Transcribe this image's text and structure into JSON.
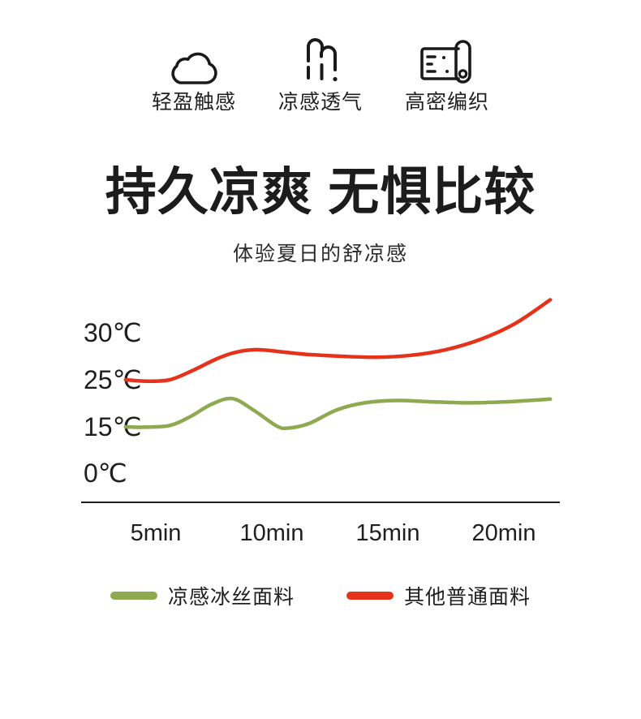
{
  "page": {
    "background": "#ffffff"
  },
  "colors": {
    "text": "#1f1f1f",
    "icon_stroke": "#1a1a1a",
    "axis": "#1f1f1f",
    "cool_green": "#8FA951",
    "warm_red": "#E5331B"
  },
  "features": {
    "items": [
      {
        "icon": "cloud-icon",
        "label": "轻盈触感"
      },
      {
        "icon": "steam-icon",
        "label": "凉感透气"
      },
      {
        "icon": "fabric-roll-icon",
        "label": "高密编织"
      }
    ]
  },
  "heading": {
    "title": "持久凉爽 无惧比较",
    "subtitle": "体验夏日的舒凉感"
  },
  "chart_data": {
    "type": "line",
    "title": "",
    "x_unit": "min",
    "y_unit": "℃",
    "grid": false,
    "legend_position": "bottom",
    "y_axis_style": "non-linear: tick stops 0/15/25/30 are evenly spaced",
    "x_ticks": [
      {
        "value": 5,
        "label": "5min"
      },
      {
        "value": 10,
        "label": "10min"
      },
      {
        "value": 15,
        "label": "15min"
      },
      {
        "value": 20,
        "label": "20min"
      }
    ],
    "y_ticks": [
      {
        "value": 30,
        "label": "30℃"
      },
      {
        "value": 25,
        "label": "25℃"
      },
      {
        "value": 15,
        "label": "15℃"
      },
      {
        "value": 0,
        "label": "0℃"
      }
    ],
    "series": [
      {
        "name": "凉感冰丝面料",
        "color": "#8FA951",
        "points": [
          [
            3.7,
            15.0
          ],
          [
            4.5,
            14.9
          ],
          [
            5.6,
            15.3
          ],
          [
            6.5,
            17.2
          ],
          [
            7.4,
            19.8
          ],
          [
            8.3,
            21.0
          ],
          [
            9.2,
            18.6
          ],
          [
            10.2,
            15.2
          ],
          [
            10.7,
            14.6
          ],
          [
            11.6,
            15.7
          ],
          [
            12.8,
            18.6
          ],
          [
            14.0,
            20.1
          ],
          [
            15.4,
            20.6
          ],
          [
            17.0,
            20.3
          ],
          [
            18.5,
            20.1
          ],
          [
            20.0,
            20.3
          ],
          [
            22.0,
            20.9
          ]
        ]
      },
      {
        "name": "其他普通面料",
        "color": "#E5331B",
        "points": [
          [
            3.7,
            25.0
          ],
          [
            4.6,
            24.7
          ],
          [
            5.6,
            25.0
          ],
          [
            6.6,
            26.0
          ],
          [
            7.6,
            27.2
          ],
          [
            8.4,
            27.9
          ],
          [
            9.3,
            28.2
          ],
          [
            10.3,
            28.0
          ],
          [
            11.5,
            27.7
          ],
          [
            13.0,
            27.5
          ],
          [
            14.5,
            27.4
          ],
          [
            16.0,
            27.6
          ],
          [
            17.5,
            28.2
          ],
          [
            19.0,
            29.3
          ],
          [
            20.5,
            31.0
          ],
          [
            22.0,
            33.5
          ]
        ]
      }
    ]
  }
}
